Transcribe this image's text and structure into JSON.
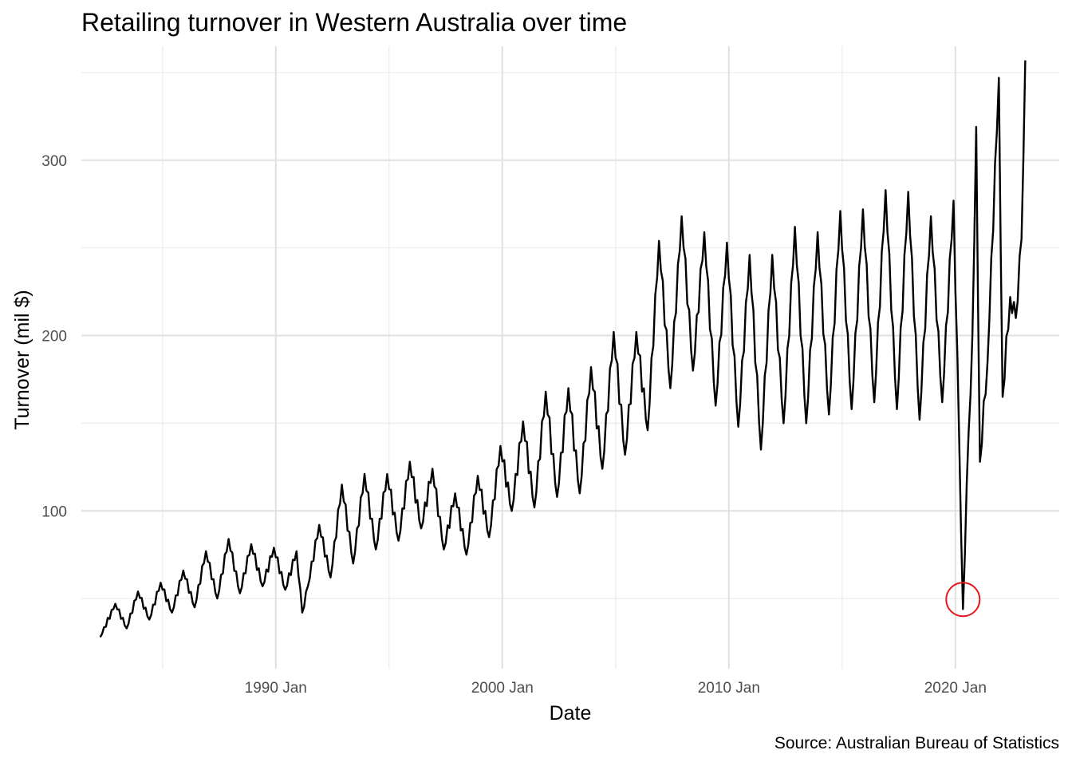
{
  "chart_data": {
    "type": "line",
    "title": "Retailing turnover in Western Australia over time",
    "xlabel": "Date",
    "ylabel": "Turnover (mil $)",
    "caption": "Source: Australian Bureau of Statistics",
    "x_ticks": [
      "1990 Jan",
      "2000 Jan",
      "2010 Jan",
      "2020 Jan"
    ],
    "y_ticks": [
      100,
      200,
      300
    ],
    "xlim": [
      "1981-06",
      "2024-08"
    ],
    "ylim": [
      10,
      365
    ],
    "grid": true,
    "line_color": "#000000",
    "highlight": {
      "date": "2020-05",
      "value": 44,
      "color": "#e3191c",
      "shape": "circle"
    },
    "series": [
      {
        "frequency": "monthly",
        "start": "1982-04",
        "end": "2023-02",
        "anchors": [
          [
            "1982-04",
            28
          ],
          [
            "1982-12",
            47
          ],
          [
            "1983-06",
            33
          ],
          [
            "1983-12",
            54
          ],
          [
            "1984-06",
            38
          ],
          [
            "1984-12",
            59
          ],
          [
            "1985-06",
            42
          ],
          [
            "1985-12",
            66
          ],
          [
            "1986-06",
            45
          ],
          [
            "1986-12",
            77
          ],
          [
            "1987-06",
            50
          ],
          [
            "1987-12",
            84
          ],
          [
            "1988-06",
            53
          ],
          [
            "1988-12",
            81
          ],
          [
            "1989-06",
            57
          ],
          [
            "1989-12",
            79
          ],
          [
            "1990-06",
            55
          ],
          [
            "1990-12",
            77
          ],
          [
            "1991-03",
            42
          ],
          [
            "1991-06",
            57
          ],
          [
            "1991-12",
            92
          ],
          [
            "1992-06",
            62
          ],
          [
            "1992-12",
            115
          ],
          [
            "1993-06",
            70
          ],
          [
            "1993-12",
            121
          ],
          [
            "1994-06",
            78
          ],
          [
            "1994-12",
            121
          ],
          [
            "1995-06",
            83
          ],
          [
            "1995-12",
            128
          ],
          [
            "1996-06",
            90
          ],
          [
            "1996-12",
            124
          ],
          [
            "1997-06",
            78
          ],
          [
            "1997-12",
            110
          ],
          [
            "1998-06",
            75
          ],
          [
            "1998-12",
            120
          ],
          [
            "1999-06",
            85
          ],
          [
            "1999-12",
            137
          ],
          [
            "2000-06",
            100
          ],
          [
            "2000-12",
            151
          ],
          [
            "2001-06",
            102
          ],
          [
            "2001-12",
            168
          ],
          [
            "2002-06",
            108
          ],
          [
            "2002-12",
            170
          ],
          [
            "2003-06",
            110
          ],
          [
            "2003-12",
            182
          ],
          [
            "2004-06",
            124
          ],
          [
            "2004-12",
            202
          ],
          [
            "2005-06",
            132
          ],
          [
            "2005-12",
            202
          ],
          [
            "2006-06",
            146
          ],
          [
            "2006-12",
            254
          ],
          [
            "2007-06",
            170
          ],
          [
            "2007-12",
            268
          ],
          [
            "2008-06",
            180
          ],
          [
            "2008-12",
            259
          ],
          [
            "2009-06",
            160
          ],
          [
            "2009-12",
            253
          ],
          [
            "2010-06",
            148
          ],
          [
            "2010-12",
            246
          ],
          [
            "2011-06",
            135
          ],
          [
            "2011-12",
            246
          ],
          [
            "2012-06",
            150
          ],
          [
            "2012-12",
            262
          ],
          [
            "2013-06",
            150
          ],
          [
            "2013-12",
            259
          ],
          [
            "2014-06",
            155
          ],
          [
            "2014-12",
            271
          ],
          [
            "2015-06",
            158
          ],
          [
            "2015-12",
            272
          ],
          [
            "2016-06",
            162
          ],
          [
            "2016-12",
            283
          ],
          [
            "2017-06",
            158
          ],
          [
            "2017-12",
            282
          ],
          [
            "2018-06",
            152
          ],
          [
            "2018-12",
            268
          ],
          [
            "2019-06",
            162
          ],
          [
            "2019-12",
            277
          ],
          [
            "2020-03",
            140
          ],
          [
            "2020-05",
            44
          ],
          [
            "2020-08",
            145
          ],
          [
            "2020-10",
            200
          ],
          [
            "2020-12",
            319
          ],
          [
            "2021-02",
            128
          ],
          [
            "2021-06",
            185
          ],
          [
            "2021-12",
            347
          ],
          [
            "2022-02",
            165
          ],
          [
            "2022-06",
            222
          ],
          [
            "2022-09",
            210
          ],
          [
            "2022-12",
            255
          ],
          [
            "2023-02",
            357
          ]
        ]
      }
    ]
  }
}
